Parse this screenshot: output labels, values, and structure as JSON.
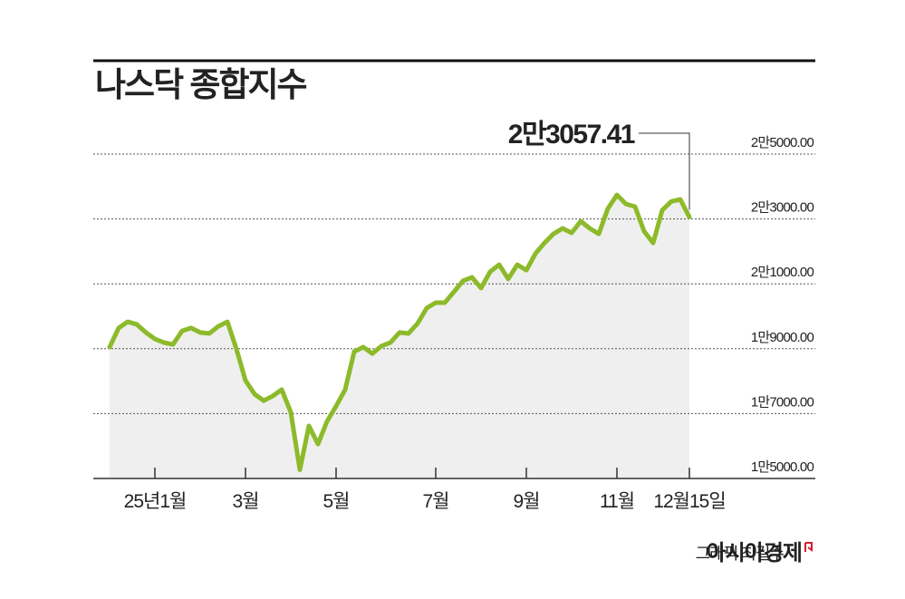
{
  "chart_data": {
    "type": "line",
    "title": "나스닥 종합지수",
    "categories": [
      null,
      null,
      null,
      null,
      null,
      "25년1월",
      null,
      null,
      null,
      null,
      null,
      null,
      null,
      null,
      null,
      "3월",
      null,
      null,
      null,
      null,
      null,
      null,
      null,
      null,
      null,
      "5월",
      null,
      null,
      null,
      null,
      null,
      null,
      null,
      null,
      null,
      null,
      "7월",
      null,
      null,
      null,
      null,
      null,
      null,
      null,
      null,
      null,
      "9월",
      null,
      null,
      null,
      null,
      null,
      null,
      null,
      null,
      null,
      "11월",
      null,
      null,
      null,
      null,
      null,
      null,
      null,
      "12월15일"
    ],
    "values": [
      19050,
      19640,
      19830,
      19750,
      19500,
      19300,
      19190,
      19130,
      19550,
      19640,
      19500,
      19470,
      19690,
      19830,
      18990,
      18020,
      17600,
      17400,
      17540,
      17740,
      17040,
      15270,
      16620,
      16060,
      16760,
      17230,
      17740,
      18910,
      19050,
      18850,
      19080,
      19190,
      19500,
      19470,
      19780,
      20250,
      20420,
      20420,
      20750,
      21090,
      21200,
      20870,
      21370,
      21590,
      21150,
      21590,
      21420,
      21930,
      22260,
      22540,
      22710,
      22570,
      22930,
      22710,
      22540,
      23320,
      23740,
      23460,
      23380,
      22620,
      22260,
      23270,
      23540,
      23600,
      23057.41
    ],
    "last_value_label": "2만3057.41",
    "color": "#8cba2a",
    "area_color": "#efefef",
    "ylim": [
      15000,
      25000
    ],
    "yticks": [
      {
        "value": 15000,
        "label": "1만5000.00"
      },
      {
        "value": 17000,
        "label": "1만7000.00"
      },
      {
        "value": 19000,
        "label": "1만9000.00"
      },
      {
        "value": 21000,
        "label": "2만1000.00"
      },
      {
        "value": 23000,
        "label": "2만3000.00"
      },
      {
        "value": 25000,
        "label": "2만5000.00"
      }
    ],
    "grid": true
  },
  "source": {
    "credit": "그래픽 최길수",
    "publisher": "아시아경제"
  }
}
